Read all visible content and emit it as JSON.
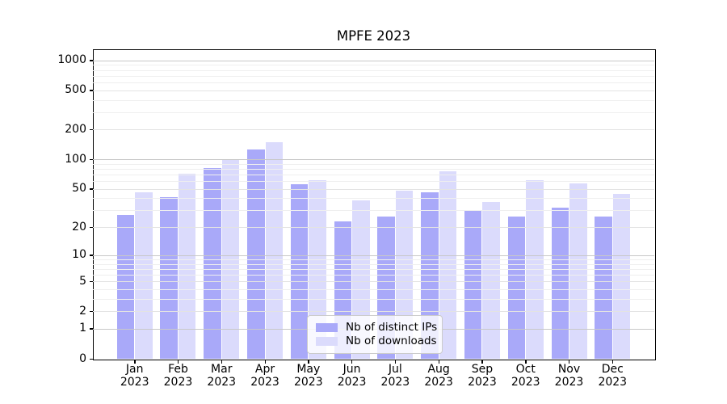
{
  "chart_data": {
    "type": "bar",
    "title": "MPFE 2023",
    "categories": [
      "Jan",
      "Feb",
      "Mar",
      "Apr",
      "May",
      "Jun",
      "Jul",
      "Aug",
      "Sep",
      "Oct",
      "Nov",
      "Dec"
    ],
    "year_label": "2023",
    "series": [
      {
        "name": "Nb of distinct IPs",
        "color": "#a9a9f9",
        "values": [
          27,
          41,
          82,
          125,
          56,
          23,
          26,
          46,
          30,
          26,
          32,
          26
        ]
      },
      {
        "name": "Nb of downloads",
        "color": "#dbdbfc",
        "values": [
          46,
          71,
          100,
          150,
          61,
          38,
          48,
          75,
          37,
          61,
          57,
          44
        ]
      }
    ],
    "xlabel": "",
    "ylabel": "",
    "yscale": "log(1+x)",
    "ylim": [
      0,
      1300
    ],
    "yticks": [
      0,
      1,
      2,
      5,
      10,
      20,
      50,
      100,
      200,
      500,
      1000
    ],
    "yticks_minor": [
      3,
      4,
      6,
      7,
      8,
      9,
      30,
      40,
      60,
      70,
      80,
      90,
      300,
      400,
      600,
      700,
      800,
      900
    ],
    "grid": "horizontal",
    "legend_position": "lower-center"
  },
  "colors": {
    "background": "#ffffff",
    "axis": "#000000",
    "grid_major": "#c8c8c8",
    "grid_mid": "#e3e3e3",
    "grid_minor": "#efefef",
    "legend_border": "#cccccc"
  }
}
